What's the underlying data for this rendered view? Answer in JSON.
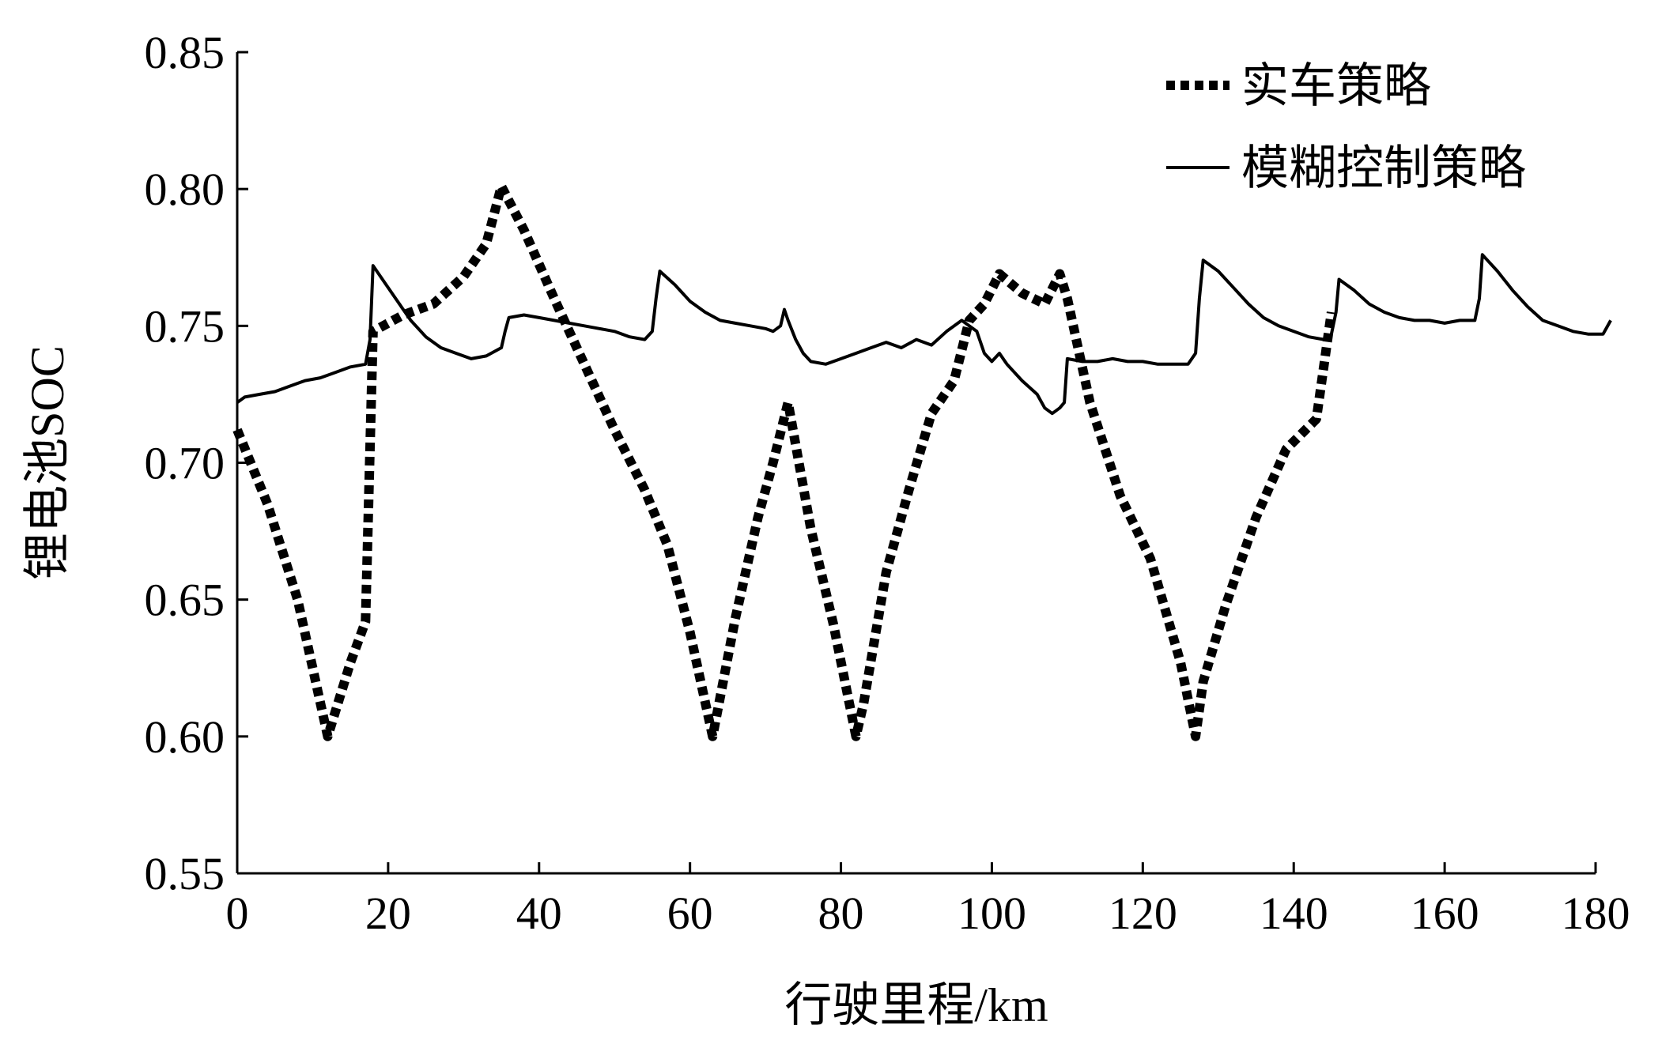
{
  "chart_data": {
    "type": "line",
    "xlabel": "行驶里程/km",
    "ylabel": "锂电池SOC",
    "xlim": [
      0,
      180
    ],
    "ylim": [
      0.55,
      0.85
    ],
    "xticks": [
      "0",
      "20",
      "40",
      "60",
      "80",
      "100",
      "120",
      "140",
      "160",
      "180"
    ],
    "yticks": [
      "0.55",
      "0.60",
      "0.65",
      "0.70",
      "0.75",
      "0.80",
      "0.85"
    ],
    "grid": false,
    "legend_position": "top-right",
    "series": [
      {
        "name": "实车策略",
        "style": "dotted",
        "color": "#000000",
        "x": [
          0,
          4,
          8,
          12,
          15,
          17,
          18,
          22,
          26,
          30,
          33,
          35,
          38,
          42,
          46,
          50,
          54,
          57,
          60,
          63,
          66,
          69,
          71,
          73,
          76,
          79,
          82,
          83,
          86,
          89,
          92,
          95,
          97,
          99,
          101,
          104,
          107,
          109,
          110,
          113,
          117,
          121,
          125,
          127,
          128,
          131,
          135,
          139,
          143,
          145
        ],
        "y": [
          0.712,
          0.685,
          0.65,
          0.6,
          0.627,
          0.642,
          0.748,
          0.754,
          0.758,
          0.768,
          0.78,
          0.801,
          0.785,
          0.76,
          0.736,
          0.712,
          0.69,
          0.67,
          0.638,
          0.6,
          0.643,
          0.68,
          0.7,
          0.722,
          0.676,
          0.641,
          0.6,
          0.612,
          0.66,
          0.69,
          0.718,
          0.73,
          0.752,
          0.758,
          0.769,
          0.762,
          0.758,
          0.769,
          0.76,
          0.722,
          0.688,
          0.665,
          0.627,
          0.6,
          0.62,
          0.648,
          0.68,
          0.705,
          0.716,
          0.755
        ]
      },
      {
        "name": "模糊控制策略",
        "style": "solid",
        "color": "#000000",
        "x": [
          0,
          1,
          3,
          5,
          7,
          9,
          11,
          13,
          15,
          17,
          17.6,
          18,
          19,
          21,
          23,
          25,
          27,
          29,
          31,
          33,
          35,
          35.5,
          36,
          38,
          40,
          42,
          44,
          46,
          48,
          50,
          52,
          54,
          55,
          55.5,
          56,
          58,
          60,
          62,
          64,
          66,
          68,
          70,
          71,
          72,
          72.5,
          73,
          74,
          75,
          76,
          78,
          80,
          82,
          84,
          86,
          88,
          90,
          92,
          94,
          96,
          98,
          99,
          100,
          101,
          102,
          104,
          106,
          107,
          108,
          109,
          109.6,
          110,
          112,
          114,
          116,
          118,
          120,
          122,
          124,
          126,
          127,
          127.5,
          128,
          130,
          132,
          134,
          136,
          138,
          140,
          142,
          144,
          145,
          145.6,
          146,
          148,
          150,
          152,
          154,
          156,
          158,
          160,
          162,
          164,
          164.6,
          165,
          167,
          169,
          171,
          173,
          175,
          177,
          179,
          181,
          182
        ],
        "y": [
          0.722,
          0.724,
          0.725,
          0.726,
          0.728,
          0.73,
          0.731,
          0.733,
          0.735,
          0.736,
          0.745,
          0.772,
          0.768,
          0.76,
          0.752,
          0.746,
          0.742,
          0.74,
          0.738,
          0.739,
          0.742,
          0.748,
          0.753,
          0.754,
          0.753,
          0.752,
          0.751,
          0.75,
          0.749,
          0.748,
          0.746,
          0.745,
          0.748,
          0.76,
          0.77,
          0.765,
          0.759,
          0.755,
          0.752,
          0.751,
          0.75,
          0.749,
          0.748,
          0.75,
          0.756,
          0.752,
          0.745,
          0.74,
          0.737,
          0.736,
          0.738,
          0.74,
          0.742,
          0.744,
          0.742,
          0.745,
          0.743,
          0.748,
          0.752,
          0.748,
          0.74,
          0.737,
          0.74,
          0.736,
          0.73,
          0.725,
          0.72,
          0.718,
          0.72,
          0.722,
          0.738,
          0.737,
          0.737,
          0.738,
          0.737,
          0.737,
          0.736,
          0.736,
          0.736,
          0.74,
          0.76,
          0.774,
          0.77,
          0.764,
          0.758,
          0.753,
          0.75,
          0.748,
          0.746,
          0.745,
          0.747,
          0.755,
          0.767,
          0.763,
          0.758,
          0.755,
          0.753,
          0.752,
          0.752,
          0.751,
          0.752,
          0.752,
          0.76,
          0.776,
          0.77,
          0.763,
          0.757,
          0.752,
          0.75,
          0.748,
          0.747,
          0.747,
          0.752
        ]
      }
    ]
  }
}
